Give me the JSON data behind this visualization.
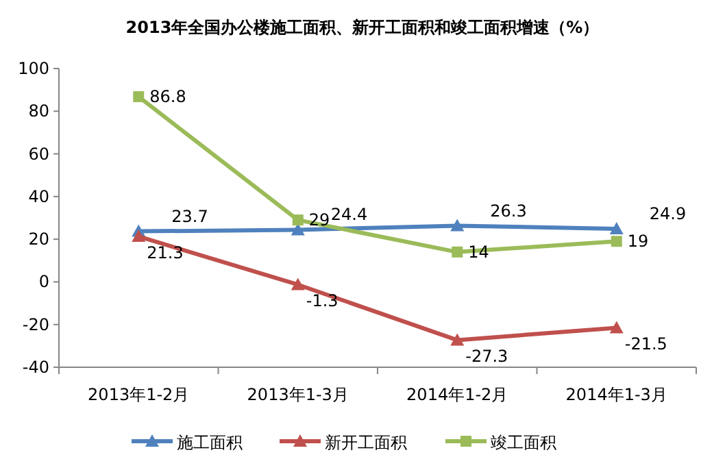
{
  "chart_data": {
    "type": "line",
    "title": "2013年全国办公楼施工面积、新开工面积和竣工面积增速（%）",
    "categories": [
      "2013年1-2月",
      "2013年1-3月",
      "2014年1-2月",
      "2014年1-3月"
    ],
    "series": [
      {
        "name": "施工面积",
        "color": "#4f81bd",
        "marker": "triangle",
        "values": [
          23.7,
          24.4,
          26.3,
          24.9
        ]
      },
      {
        "name": "新开工面积",
        "color": "#c0504d",
        "marker": "triangle",
        "values": [
          21.3,
          -1.3,
          -27.3,
          -21.5
        ]
      },
      {
        "name": "竣工面积",
        "color": "#9bbb59",
        "marker": "square",
        "values": [
          86.8,
          29,
          14,
          19
        ]
      }
    ],
    "ylim": [
      -40,
      100
    ],
    "yticks": [
      -40,
      -20,
      0,
      20,
      40,
      60,
      80,
      100
    ],
    "data_labels": true,
    "legend": "bottom",
    "grid": false,
    "line_style": "solid"
  }
}
